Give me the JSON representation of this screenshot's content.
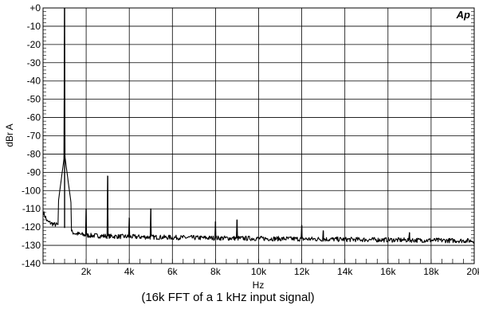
{
  "chart_data": {
    "type": "line",
    "logo": "Ap",
    "xlabel": "Hz",
    "ylabel": "dBr A",
    "caption": "(16k FFT of a 1 kHz input signal)",
    "xlim": [
      0,
      20000
    ],
    "ylim": [
      -140,
      0
    ],
    "grid": true,
    "x_ticks": [
      2000,
      4000,
      6000,
      8000,
      10000,
      12000,
      14000,
      16000,
      18000,
      20000
    ],
    "x_tick_labels": [
      "2k",
      "4k",
      "6k",
      "8k",
      "10k",
      "12k",
      "14k",
      "16k",
      "18k",
      "20k"
    ],
    "y_ticks": [
      0,
      -10,
      -20,
      -30,
      -40,
      -50,
      -60,
      -70,
      -80,
      -90,
      -100,
      -110,
      -120,
      -130,
      -140
    ],
    "y_tick_labels": [
      "+0",
      "-10",
      "-20",
      "-30",
      "-40",
      "-50",
      "-60",
      "-70",
      "-80",
      "-90",
      "-100",
      "-110",
      "-120",
      "-130",
      "-140"
    ],
    "series": [
      {
        "color": "#000000",
        "noise_floor": [
          [
            20,
            -112
          ],
          [
            200,
            -117
          ],
          [
            500,
            -118.5
          ],
          [
            800,
            -119
          ],
          [
            1200,
            -122
          ],
          [
            1500,
            -123.5
          ],
          [
            2000,
            -124.5
          ],
          [
            3000,
            -125
          ],
          [
            5000,
            -125.5
          ],
          [
            8000,
            -126
          ],
          [
            12000,
            -126.5
          ],
          [
            16000,
            -127
          ],
          [
            20000,
            -127.5
          ]
        ],
        "peaks": [
          {
            "x": 1000,
            "y": 0
          },
          {
            "x": 2000,
            "y": -110
          },
          {
            "x": 3000,
            "y": -92
          },
          {
            "x": 4000,
            "y": -115
          },
          {
            "x": 5000,
            "y": -110
          },
          {
            "x": 8000,
            "y": -117
          },
          {
            "x": 9000,
            "y": -116
          },
          {
            "x": 12000,
            "y": -119
          },
          {
            "x": 13000,
            "y": -122
          },
          {
            "x": 17000,
            "y": -123
          }
        ]
      }
    ]
  }
}
